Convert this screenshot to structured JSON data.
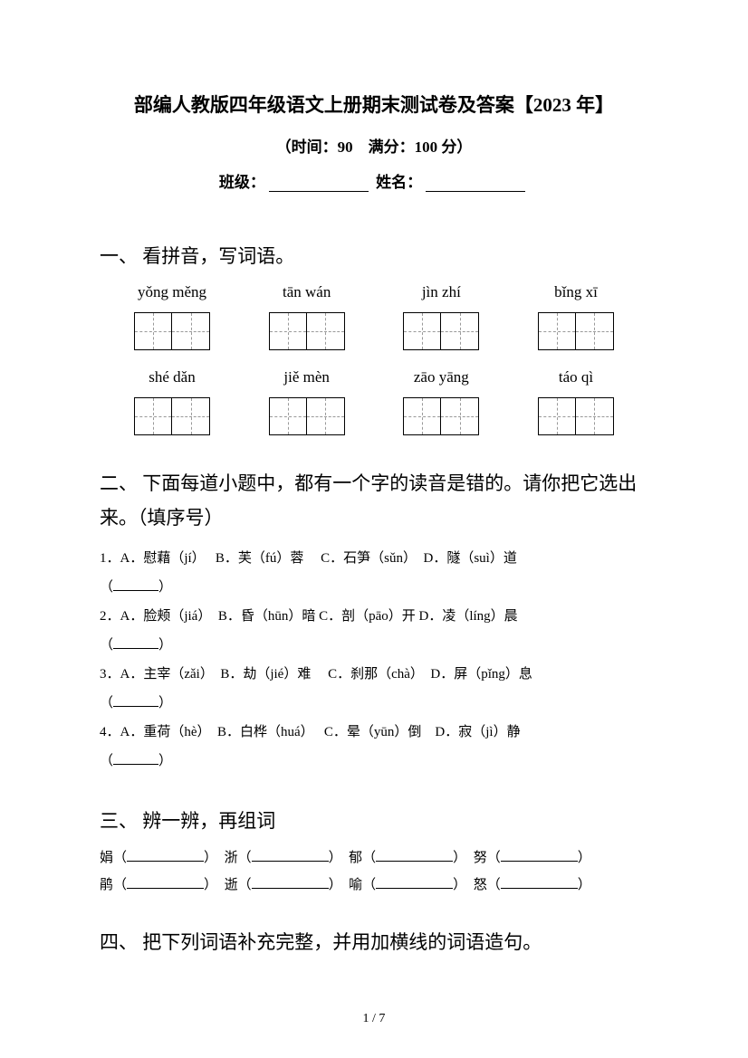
{
  "header": {
    "title": "部编人教版四年级语文上册期末测试卷及答案【2023 年】",
    "subtitle": "（时间：90　满分：100 分）",
    "class_label": "班级：",
    "name_label": "姓名："
  },
  "section1": {
    "heading": "一、 看拼音，写词语。",
    "row1": [
      "yǒng měng",
      "tān wán",
      "jìn zhí",
      "bǐng xī"
    ],
    "row2": [
      "shé dǎn",
      "jiě mèn",
      "zāo yāng",
      "táo qì"
    ]
  },
  "section2": {
    "heading": "二、 下面每道小题中，都有一个字的读音是错的。请你把它选出来。（填序号）",
    "q1": "1．A．慰藉（jí）　 B．芙（fú）蓉　 C．石笋（sǔn）　D．隧（suì）道",
    "q2": "2．A．脸颊（jiá）　B．昏（hūn）暗 C．剖（pāo）开 D．凌（líng）晨",
    "q3": "3．A．主宰（zǎi）　B．劫（jié）难　 C．刹那（chà）　D．屏（pǐng）息",
    "q4": "4．A．重荷（hè）　B．白桦（huá）　 C．晕（yūn）倒　D．寂（jì）静",
    "blank_open": "（",
    "blank_close": "）"
  },
  "section3": {
    "heading": "三、 辨一辨，再组词",
    "chars": {
      "r1c1": "娟",
      "r1c2": "浙",
      "r1c3": "郁",
      "r1c4": "努",
      "r2c1": "鹃",
      "r2c2": "逝",
      "r2c3": "喻",
      "r2c4": "怒"
    },
    "open": "（",
    "close": "）"
  },
  "section4": {
    "heading": "四、 把下列词语补充完整，并用加横线的词语造句。"
  },
  "footer": {
    "page": "1 / 7"
  }
}
